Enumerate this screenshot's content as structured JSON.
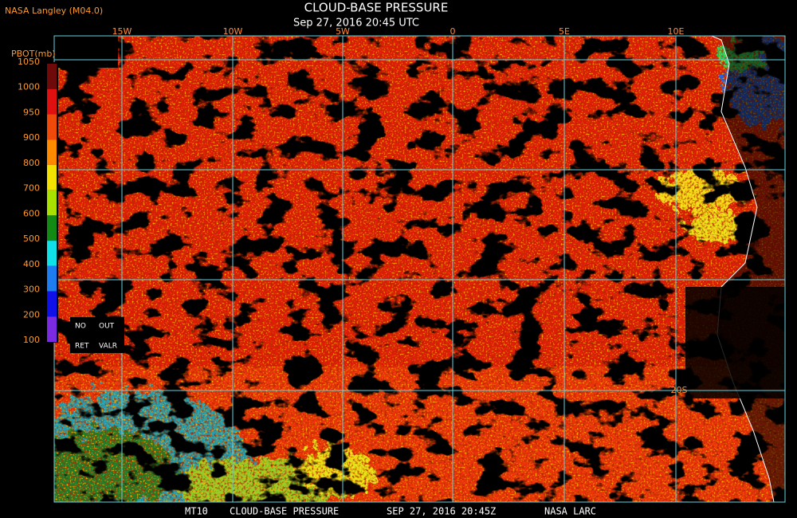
{
  "header": {
    "source": "NASA Langley (M04.0)",
    "title": "CLOUD-BASE PRESSURE",
    "timestamp": "Sep 27, 2016 20:45 UTC"
  },
  "legend": {
    "title": "PBOT(mb)",
    "labels": [
      1050,
      1000,
      950,
      900,
      800,
      700,
      600,
      500,
      400,
      300,
      200,
      100
    ],
    "no_data": [
      "NO",
      "RET"
    ],
    "out_of_range": [
      "OUT",
      "VALR"
    ]
  },
  "map": {
    "longitude_labels": [
      "15W",
      "10W",
      "5W",
      "0",
      "5E",
      "10E"
    ],
    "latitude_labels": [
      "20S"
    ]
  },
  "footer": [
    "MT10",
    "CLOUD-BASE PRESSURE",
    "SEP 27, 2016 20:45Z",
    "NASA LARC"
  ]
}
